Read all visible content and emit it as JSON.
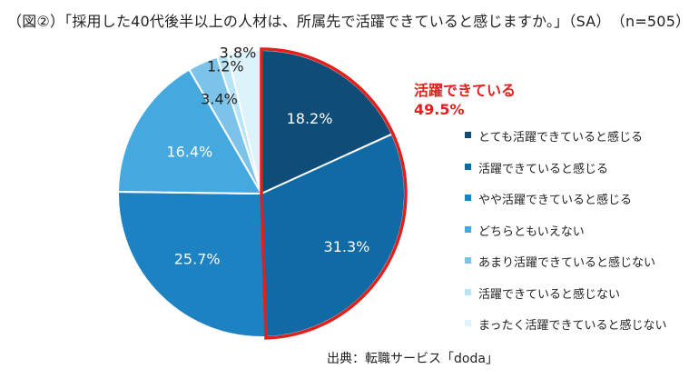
{
  "title": "（図②）「採用した40代後半以上の人材は、所属先で活躍できていると感じますか。」（SA）　（n=505）",
  "callout": {
    "label": "活躍できている",
    "value": "49.5%",
    "color": "#e0201b"
  },
  "source": "出典：転職サービス「doda」",
  "chart_data": {
    "type": "pie",
    "start": "top, clockwise",
    "series": [
      {
        "name": "とても活躍できていると感じる",
        "value": 18.2,
        "label": "18.2%",
        "color": "#0f4d78",
        "text_color": "#ffffff"
      },
      {
        "name": "活躍できていると感じる",
        "value": 31.3,
        "label": "31.3%",
        "color": "#0f6aa6",
        "text_color": "#ffffff"
      },
      {
        "name": "やや活躍できていると感じる",
        "value": 25.7,
        "label": "25.7%",
        "color": "#1d82c2",
        "text_color": "#ffffff"
      },
      {
        "name": "どちらともいえない",
        "value": 16.4,
        "label": "16.4%",
        "color": "#45a9df",
        "text_color": "#ffffff"
      },
      {
        "name": "あまり活躍できていると感じない",
        "value": 3.4,
        "label": "3.4%",
        "color": "#7cc3ea",
        "text_color": "#222222"
      },
      {
        "name": "活躍できていると感じない",
        "value": 1.2,
        "label": "1.2%",
        "color": "#b8e4f7",
        "text_color": "#222222"
      },
      {
        "name": "まったく活躍できていると感じない",
        "value": 3.8,
        "label": "3.8%",
        "color": "#dcf3fc",
        "text_color": "#222222"
      }
    ],
    "legend": "right",
    "highlight": {
      "slices": [
        0,
        1
      ],
      "outline_color": "#e0201b"
    }
  }
}
